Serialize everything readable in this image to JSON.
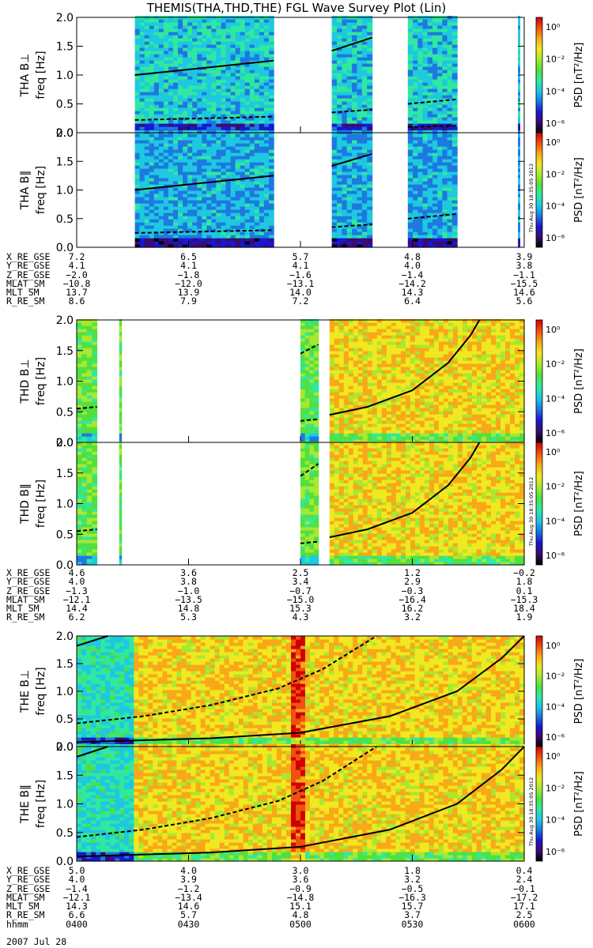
{
  "title": "THEMIS(THA,THD,THE) FGL Wave Survey Plot (Lin)",
  "colors": {
    "colormap": [
      "#000000",
      "#3b0b70",
      "#1818d0",
      "#1e78e0",
      "#1ec8e0",
      "#30e8a0",
      "#50e040",
      "#a8e830",
      "#f0e820",
      "#f8a818",
      "#f05010",
      "#d00000"
    ],
    "trace": "#000000"
  },
  "colorbar": {
    "label": "PSD [nT²/Hz]",
    "ticks": [
      "10⁰",
      "10⁻²",
      "10⁻⁴",
      "10⁻⁶"
    ],
    "stamp": "Thu Aug 30 18:35:05 2012"
  },
  "chart_data": [
    {
      "type": "heatmap",
      "panel": "THA B⊥",
      "ylabel": "THA B⊥",
      "yunit": "freq [Hz]",
      "ylim": [
        0,
        2.0
      ],
      "yticks": [
        "0.0",
        "0.5",
        "1.0",
        "1.5",
        "2.0"
      ],
      "coverage": [
        [
          0.13,
          0.44
        ],
        [
          0.57,
          0.66
        ],
        [
          0.74,
          0.85
        ],
        [
          0.986,
          0.99
        ]
      ],
      "traces": [
        {
          "kind": "solid",
          "points": [
            [
              0.13,
              1.0
            ],
            [
              0.44,
              1.25
            ]
          ]
        },
        {
          "kind": "dashed",
          "points": [
            [
              0.13,
              0.22
            ],
            [
              0.44,
              0.28
            ]
          ]
        },
        {
          "kind": "solid",
          "points": [
            [
              0.57,
              1.42
            ],
            [
              0.66,
              1.65
            ]
          ]
        },
        {
          "kind": "dashed",
          "points": [
            [
              0.57,
              0.35
            ],
            [
              0.66,
              0.4
            ]
          ]
        },
        {
          "kind": "dashed",
          "points": [
            [
              0.74,
              0.5
            ],
            [
              0.85,
              0.58
            ]
          ]
        },
        {
          "kind": "dashed",
          "points": [
            [
              0.74,
              0.1
            ],
            [
              0.85,
              0.12
            ]
          ]
        }
      ]
    },
    {
      "type": "heatmap",
      "panel": "THA B∥",
      "ylabel": "THA B∥",
      "yunit": "freq [Hz]",
      "ylim": [
        0,
        2.0
      ],
      "yticks": [
        "0.0",
        "0.5",
        "1.0",
        "1.5",
        "2.0"
      ],
      "coverage": [
        [
          0.13,
          0.44
        ],
        [
          0.57,
          0.66
        ],
        [
          0.74,
          0.85
        ],
        [
          0.986,
          0.99
        ]
      ],
      "traces": [
        {
          "kind": "solid",
          "points": [
            [
              0.13,
              1.0
            ],
            [
              0.44,
              1.25
            ]
          ]
        },
        {
          "kind": "dashed",
          "points": [
            [
              0.13,
              0.25
            ],
            [
              0.44,
              0.3
            ]
          ]
        },
        {
          "kind": "solid",
          "points": [
            [
              0.57,
              1.42
            ],
            [
              0.66,
              1.63
            ]
          ]
        },
        {
          "kind": "dashed",
          "points": [
            [
              0.57,
              0.35
            ],
            [
              0.66,
              0.4
            ]
          ]
        },
        {
          "kind": "dashed",
          "points": [
            [
              0.74,
              0.5
            ],
            [
              0.85,
              0.58
            ]
          ]
        }
      ]
    },
    {
      "type": "heatmap",
      "panel": "THD B⊥",
      "ylabel": "THD B⊥",
      "yunit": "freq [Hz]",
      "ylim": [
        0,
        2.0
      ],
      "yticks": [
        "0.0",
        "0.5",
        "1.0",
        "1.5",
        "2.0"
      ],
      "coverage": [
        [
          0.0,
          0.045
        ],
        [
          0.095,
          0.1
        ],
        [
          0.5,
          0.54
        ],
        [
          0.565,
          1.0
        ]
      ],
      "traces": [
        {
          "kind": "dashed",
          "points": [
            [
              0.0,
              0.55
            ],
            [
              0.045,
              0.58
            ]
          ]
        },
        {
          "kind": "dashed",
          "points": [
            [
              0.5,
              1.45
            ],
            [
              0.54,
              1.6
            ]
          ]
        },
        {
          "kind": "dashed",
          "points": [
            [
              0.5,
              0.35
            ],
            [
              0.54,
              0.38
            ]
          ]
        },
        {
          "kind": "solid",
          "points": [
            [
              0.565,
              0.45
            ],
            [
              0.65,
              0.58
            ],
            [
              0.75,
              0.85
            ],
            [
              0.83,
              1.3
            ],
            [
              0.88,
              1.75
            ],
            [
              0.9,
              2.0
            ]
          ]
        }
      ]
    },
    {
      "type": "heatmap",
      "panel": "THD B∥",
      "ylabel": "THD B∥",
      "yunit": "freq [Hz]",
      "ylim": [
        0,
        2.0
      ],
      "yticks": [
        "0.0",
        "0.5",
        "1.0",
        "1.5",
        "2.0"
      ],
      "coverage": [
        [
          0.0,
          0.045
        ],
        [
          0.095,
          0.1
        ],
        [
          0.5,
          0.54
        ],
        [
          0.565,
          1.0
        ]
      ],
      "traces": [
        {
          "kind": "dashed",
          "points": [
            [
              0.0,
              0.55
            ],
            [
              0.045,
              0.58
            ]
          ]
        },
        {
          "kind": "dashed",
          "points": [
            [
              0.5,
              1.45
            ],
            [
              0.54,
              1.65
            ]
          ]
        },
        {
          "kind": "dashed",
          "points": [
            [
              0.5,
              0.35
            ],
            [
              0.54,
              0.38
            ]
          ]
        },
        {
          "kind": "solid",
          "points": [
            [
              0.565,
              0.45
            ],
            [
              0.65,
              0.58
            ],
            [
              0.75,
              0.85
            ],
            [
              0.83,
              1.3
            ],
            [
              0.88,
              1.75
            ],
            [
              0.9,
              2.0
            ]
          ]
        }
      ]
    },
    {
      "type": "heatmap",
      "panel": "THE B⊥",
      "ylabel": "THE B⊥",
      "yunit": "freq [Hz]",
      "ylim": [
        0,
        2.0
      ],
      "yticks": [
        "0.0",
        "0.5",
        "1.0",
        "1.5",
        "2.0"
      ],
      "coverage": [
        [
          0.0,
          1.0
        ]
      ],
      "traces": [
        {
          "kind": "solid",
          "points": [
            [
              0.0,
              1.82
            ],
            [
              0.07,
              2.0
            ]
          ]
        },
        {
          "kind": "dashed",
          "points": [
            [
              0.0,
              0.42
            ],
            [
              0.15,
              0.55
            ],
            [
              0.3,
              0.75
            ],
            [
              0.45,
              1.05
            ],
            [
              0.55,
              1.4
            ],
            [
              0.65,
              1.9
            ],
            [
              0.67,
              2.0
            ]
          ]
        },
        {
          "kind": "solid",
          "points": [
            [
              0.0,
              0.08
            ],
            [
              0.3,
              0.15
            ],
            [
              0.5,
              0.25
            ],
            [
              0.7,
              0.55
            ],
            [
              0.85,
              1.0
            ],
            [
              0.95,
              1.6
            ],
            [
              1.0,
              2.0
            ]
          ]
        }
      ]
    },
    {
      "type": "heatmap",
      "panel": "THE B∥",
      "ylabel": "THE B∥",
      "yunit": "freq [Hz]",
      "ylim": [
        0,
        2.0
      ],
      "yticks": [
        "0.0",
        "0.5",
        "1.0",
        "1.5",
        "2.0"
      ],
      "coverage": [
        [
          0.0,
          1.0
        ]
      ],
      "traces": [
        {
          "kind": "solid",
          "points": [
            [
              0.0,
              1.82
            ],
            [
              0.07,
              2.0
            ]
          ]
        },
        {
          "kind": "dashed",
          "points": [
            [
              0.0,
              0.42
            ],
            [
              0.15,
              0.55
            ],
            [
              0.3,
              0.75
            ],
            [
              0.45,
              1.05
            ],
            [
              0.55,
              1.4
            ],
            [
              0.65,
              1.9
            ],
            [
              0.67,
              2.0
            ]
          ]
        },
        {
          "kind": "solid",
          "points": [
            [
              0.0,
              0.08
            ],
            [
              0.3,
              0.15
            ],
            [
              0.5,
              0.25
            ],
            [
              0.7,
              0.55
            ],
            [
              0.85,
              1.0
            ],
            [
              0.95,
              1.6
            ],
            [
              1.0,
              2.0
            ]
          ]
        }
      ]
    }
  ],
  "ephemeris": [
    {
      "probe": "THA",
      "rows": [
        {
          "label": "X_RE_GSE",
          "values": [
            "7.2",
            "6.5",
            "5.7",
            "4.8",
            "3.9"
          ]
        },
        {
          "label": "Y_RE_GSE",
          "values": [
            "4.1",
            "4.1",
            "4.1",
            "4.0",
            "3.8"
          ]
        },
        {
          "label": "Z_RE_GSE",
          "values": [
            "−2.0",
            "−1.8",
            "−1.6",
            "−1.4",
            "−1.1"
          ]
        },
        {
          "label": "MLAT_SM",
          "values": [
            "−10.8",
            "−12.0",
            "−13.1",
            "−14.2",
            "−15.5"
          ]
        },
        {
          "label": "MLT_SM",
          "values": [
            "13.7",
            "13.9",
            "14.0",
            "14.3",
            "14.6"
          ]
        },
        {
          "label": "R_RE_SM",
          "values": [
            "8.6",
            "7.9",
            "7.2",
            "6.4",
            "5.6"
          ]
        }
      ]
    },
    {
      "probe": "THD",
      "rows": [
        {
          "label": "X_RE_GSE",
          "values": [
            "4.6",
            "3.6",
            "2.5",
            "1.2",
            "−0.2"
          ]
        },
        {
          "label": "Y_RE_GSE",
          "values": [
            "4.0",
            "3.8",
            "3.4",
            "2.9",
            "1.8"
          ]
        },
        {
          "label": "Z_RE_GSE",
          "values": [
            "−1.3",
            "−1.0",
            "−0.7",
            "−0.3",
            "0.1"
          ]
        },
        {
          "label": "MLAT_SM",
          "values": [
            "−12.1",
            "−13.5",
            "−15.0",
            "−16.4",
            "−15.3"
          ]
        },
        {
          "label": "MLT_SM",
          "values": [
            "14.4",
            "14.8",
            "15.3",
            "16.2",
            "18.4"
          ]
        },
        {
          "label": "R_RE_SM",
          "values": [
            "6.2",
            "5.3",
            "4.3",
            "3.2",
            "1.9"
          ]
        }
      ]
    },
    {
      "probe": "THE",
      "rows": [
        {
          "label": "X_RE_GSE",
          "values": [
            "5.0",
            "4.0",
            "3.0",
            "1.8",
            "0.4"
          ]
        },
        {
          "label": "Y_RE_GSE",
          "values": [
            "4.0",
            "3.9",
            "3.6",
            "3.2",
            "2.4"
          ]
        },
        {
          "label": "Z_RE_GSE",
          "values": [
            "−1.4",
            "−1.2",
            "−0.9",
            "−0.5",
            "−0.1"
          ]
        },
        {
          "label": "MLAT_SM",
          "values": [
            "−12.1",
            "−13.4",
            "−14.8",
            "−16.3",
            "−17.2"
          ]
        },
        {
          "label": "MLT_SM",
          "values": [
            "14.3",
            "14.6",
            "15.1",
            "15.7",
            "17.1"
          ]
        },
        {
          "label": "R_RE_SM",
          "values": [
            "6.6",
            "5.7",
            "4.8",
            "3.7",
            "2.5"
          ]
        },
        {
          "label": "hhmm",
          "values": [
            "0400",
            "0430",
            "0500",
            "0530",
            "0600"
          ]
        }
      ]
    }
  ],
  "date": "2007 Jul 28"
}
